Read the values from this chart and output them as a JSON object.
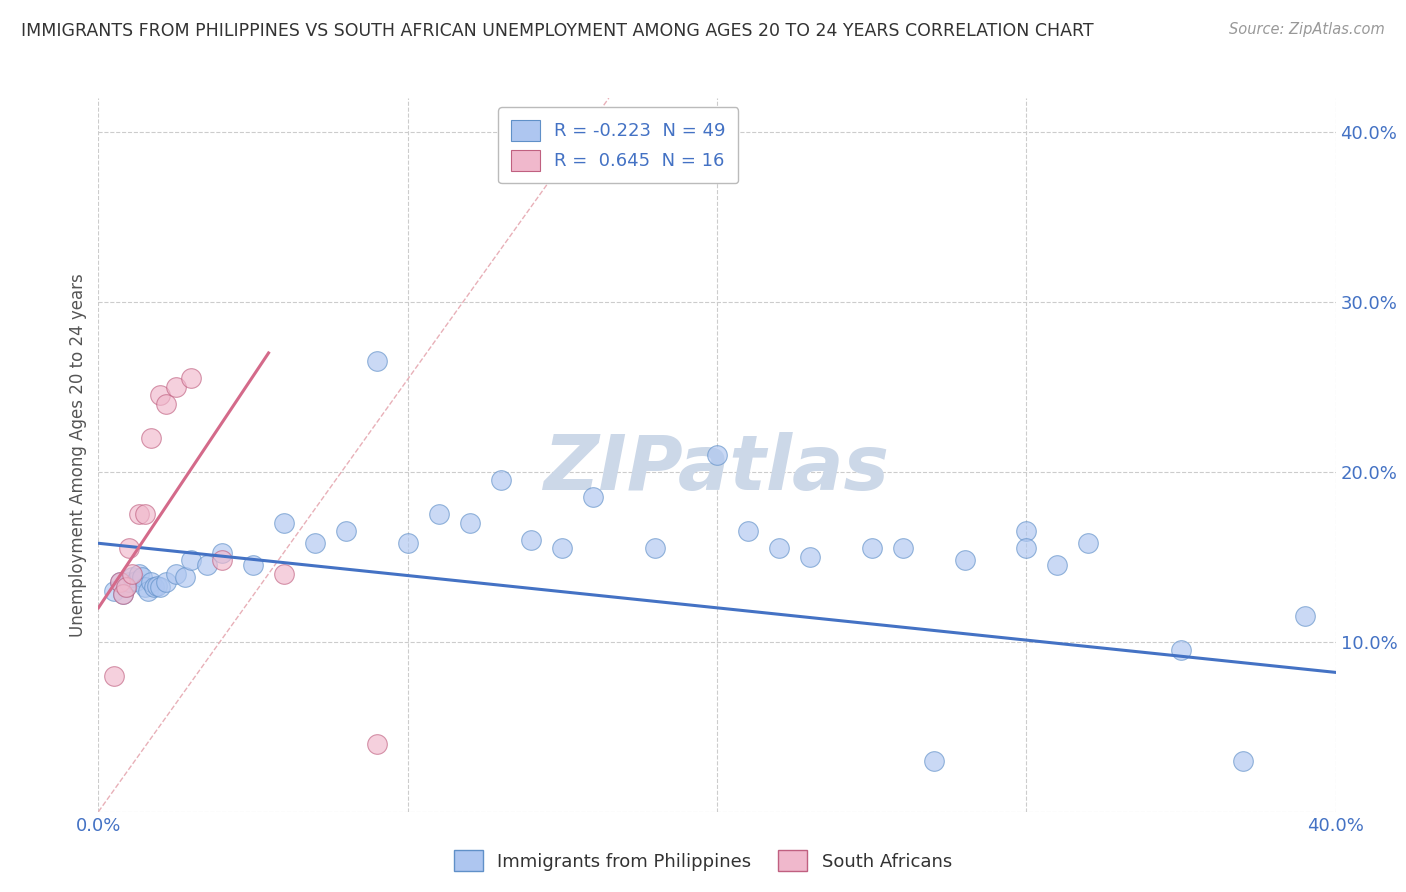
{
  "title": "IMMIGRANTS FROM PHILIPPINES VS SOUTH AFRICAN UNEMPLOYMENT AMONG AGES 20 TO 24 YEARS CORRELATION CHART",
  "source": "Source: ZipAtlas.com",
  "ylabel": "Unemployment Among Ages 20 to 24 years",
  "xlim": [
    0.0,
    0.4
  ],
  "ylim": [
    0.0,
    0.42
  ],
  "x_ticks": [
    0.0,
    0.1,
    0.2,
    0.3,
    0.4
  ],
  "y_ticks": [
    0.0,
    0.1,
    0.2,
    0.3,
    0.4
  ],
  "legend_r1": "R = -0.223  N = 49",
  "legend_r2": "R =  0.645  N = 16",
  "legend_color1": "#aec6f0",
  "legend_color2": "#f0b8cc",
  "grid_color": "#cccccc",
  "title_color": "#333333",
  "blue_line_color": "#4472c4",
  "pink_line_color": "#d46a8a",
  "blue_scatter_color": "#aec6f0",
  "pink_scatter_color": "#f0b8cc",
  "blue_scatter_edge": "#6090c8",
  "pink_scatter_edge": "#c06080",
  "diag_line_color": "#e8b0b8",
  "watermark_color": "#ccd8e8",
  "blue_points_x": [
    0.005,
    0.007,
    0.008,
    0.009,
    0.01,
    0.011,
    0.012,
    0.013,
    0.014,
    0.015,
    0.016,
    0.017,
    0.018,
    0.019,
    0.02,
    0.022,
    0.025,
    0.028,
    0.03,
    0.035,
    0.04,
    0.05,
    0.06,
    0.07,
    0.08,
    0.09,
    0.1,
    0.11,
    0.12,
    0.13,
    0.14,
    0.15,
    0.16,
    0.18,
    0.2,
    0.21,
    0.22,
    0.23,
    0.25,
    0.26,
    0.28,
    0.3,
    0.32,
    0.35,
    0.37,
    0.39,
    0.3,
    0.31,
    0.27
  ],
  "blue_points_y": [
    0.13,
    0.135,
    0.128,
    0.132,
    0.135,
    0.138,
    0.136,
    0.14,
    0.138,
    0.132,
    0.13,
    0.135,
    0.132,
    0.133,
    0.132,
    0.135,
    0.14,
    0.138,
    0.148,
    0.145,
    0.152,
    0.145,
    0.17,
    0.158,
    0.165,
    0.265,
    0.158,
    0.175,
    0.17,
    0.195,
    0.16,
    0.155,
    0.185,
    0.155,
    0.21,
    0.165,
    0.155,
    0.15,
    0.155,
    0.155,
    0.148,
    0.165,
    0.158,
    0.095,
    0.03,
    0.115,
    0.155,
    0.145,
    0.03
  ],
  "pink_points_x": [
    0.005,
    0.007,
    0.008,
    0.009,
    0.01,
    0.011,
    0.013,
    0.015,
    0.017,
    0.02,
    0.022,
    0.025,
    0.03,
    0.04,
    0.06,
    0.09
  ],
  "pink_points_y": [
    0.08,
    0.135,
    0.128,
    0.132,
    0.155,
    0.14,
    0.175,
    0.175,
    0.22,
    0.245,
    0.24,
    0.25,
    0.255,
    0.148,
    0.14,
    0.04
  ],
  "blue_line_x": [
    0.0,
    0.4
  ],
  "blue_line_y": [
    0.158,
    0.082
  ],
  "pink_line_x": [
    0.0,
    0.055
  ],
  "pink_line_y": [
    0.12,
    0.27
  ],
  "diag_line_x": [
    0.0,
    0.165
  ],
  "diag_line_y": [
    0.0,
    0.42
  ]
}
